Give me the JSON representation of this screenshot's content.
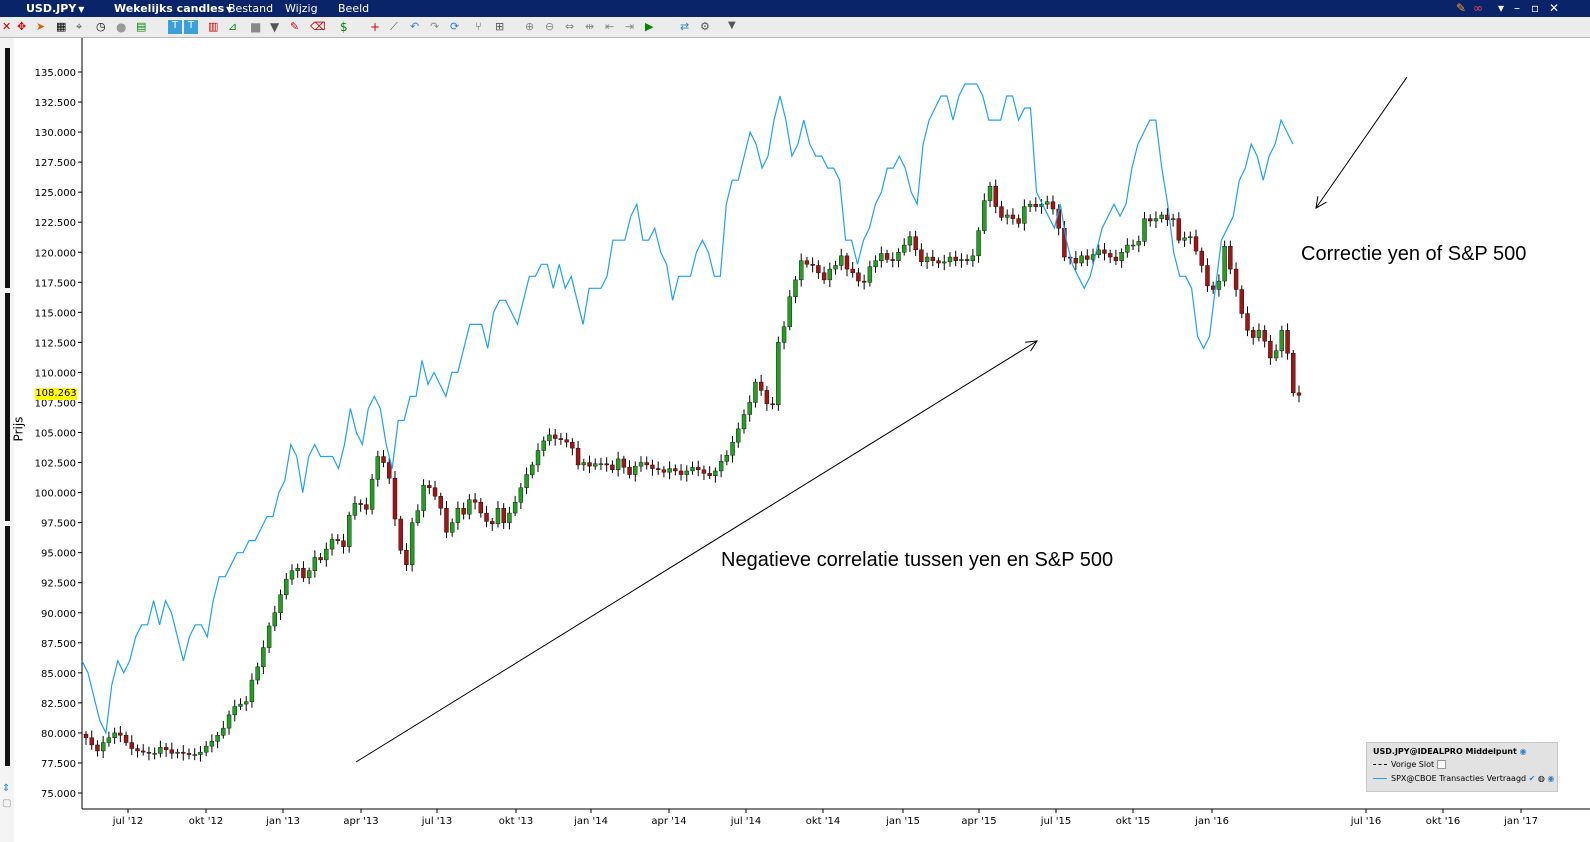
{
  "app": {
    "symbol": "USD.JPY",
    "period": "Wekelijks candles",
    "menu": [
      "Bestand",
      "Wijzig",
      "Beeld"
    ]
  },
  "chart_data": {
    "type": "candlestick",
    "ylabel": "Prijs",
    "ylim": [
      74.5,
      136.2
    ],
    "yticks": [
      "135.000",
      "132.500",
      "130.000",
      "127.500",
      "125.000",
      "122.500",
      "120.000",
      "117.500",
      "115.000",
      "112.500",
      "110.000",
      "107.500",
      "105.000",
      "102.500",
      "100.000",
      "97.500",
      "95.000",
      "92.500",
      "90.000",
      "87.500",
      "85.000",
      "82.500",
      "80.000",
      "77.500",
      "75.000"
    ],
    "xticks": [
      "jul '12",
      "okt '12",
      "jan '13",
      "apr '13",
      "jul '13",
      "okt '13",
      "jan '14",
      "apr '14",
      "jul '14",
      "okt '14",
      "jan '15",
      "apr '15",
      "jul '15",
      "okt '15",
      "jan '16",
      "jul '16",
      "okt '16",
      "jan '17"
    ],
    "current_price": "108.263",
    "usdjpy_weekly_close": [
      79.6,
      79.0,
      78.5,
      79.2,
      79.6,
      80.0,
      79.8,
      79.2,
      78.7,
      78.5,
      78.4,
      78.3,
      78.3,
      78.8,
      78.6,
      78.3,
      78.4,
      78.3,
      78.2,
      78.2,
      78.4,
      78.9,
      79.3,
      79.8,
      80.4,
      81.5,
      82.2,
      82.4,
      82.6,
      84.4,
      85.5,
      87.1,
      88.9,
      90.0,
      91.5,
      92.8,
      93.5,
      93.7,
      92.9,
      93.5,
      94.6,
      94.4,
      95.3,
      96.1,
      96.0,
      95.5,
      98.1,
      99.1,
      99.0,
      98.6,
      101.1,
      103.0,
      102.5,
      101.2,
      97.8,
      95.2,
      94.0,
      97.5,
      98.5,
      100.6,
      100.4,
      99.7,
      98.7,
      96.7,
      97.5,
      98.7,
      98.2,
      99.4,
      99.2,
      98.3,
      97.6,
      97.4,
      98.7,
      97.5,
      98.3,
      99.2,
      100.4,
      101.5,
      102.3,
      103.5,
      104.3,
      104.8,
      104.5,
      104.4,
      104.2,
      103.7,
      102.3,
      102.5,
      102.2,
      102.4,
      102.4,
      102.3,
      101.9,
      102.8,
      102.1,
      101.5,
      102.2,
      102.5,
      102.3,
      102.0,
      101.9,
      101.7,
      102.0,
      101.8,
      101.5,
      101.8,
      102.1,
      101.9,
      101.6,
      101.4,
      101.8,
      102.6,
      103.1,
      104.2,
      105.3,
      106.5,
      107.5,
      109.2,
      108.5,
      107.4,
      107.3,
      112.5,
      113.8,
      116.3,
      117.7,
      119.3,
      119.0,
      118.9,
      118.3,
      117.7,
      118.6,
      118.9,
      119.7,
      118.6,
      118.3,
      117.6,
      117.5,
      118.8,
      119.3,
      119.9,
      119.4,
      119.3,
      120.0,
      120.6,
      121.3,
      120.2,
      119.2,
      119.6,
      119.3,
      119.1,
      119.2,
      119.6,
      119.3,
      119.4,
      119.3,
      119.7,
      121.8,
      124.3,
      125.5,
      123.8,
      122.9,
      123.1,
      122.8,
      122.4,
      123.8,
      124.0,
      123.8,
      124.0,
      124.2,
      123.6,
      122.0,
      119.6,
      119.5,
      119.1,
      119.7,
      119.4,
      119.8,
      120.2,
      119.9,
      119.6,
      119.3,
      120.0,
      120.6,
      120.6,
      120.9,
      122.8,
      122.6,
      122.8,
      123.1,
      122.7,
      122.8,
      121.0,
      121.2,
      121.3,
      120.1,
      118.9,
      117.2,
      116.9,
      117.6,
      120.5,
      118.6,
      116.9,
      114.9,
      113.5,
      112.9,
      113.5,
      112.6,
      111.2,
      111.8,
      113.5,
      111.6,
      108.3,
      108.1
    ],
    "spx_line": [
      86,
      85,
      83,
      81,
      80,
      84,
      86,
      85,
      86,
      88,
      89,
      89,
      91,
      89,
      91,
      90,
      88,
      86,
      88,
      89,
      89,
      88,
      91,
      93,
      93,
      94,
      95,
      95,
      96,
      96,
      97,
      98,
      98,
      100,
      101,
      104,
      103,
      100,
      103,
      104,
      103,
      103,
      103,
      102,
      104,
      107,
      105,
      104,
      107,
      108,
      107,
      104,
      102,
      106,
      106,
      108,
      108,
      111,
      109,
      110,
      109,
      108,
      110,
      110,
      112,
      114,
      114,
      114,
      112,
      115,
      116,
      116,
      115,
      114,
      116,
      118,
      118,
      119,
      119,
      117,
      119,
      117,
      118,
      116,
      114,
      117,
      117,
      117,
      118,
      121,
      121,
      121,
      123,
      124,
      121,
      121,
      122,
      120,
      119,
      116,
      118,
      118,
      118,
      120,
      121,
      120,
      118,
      118,
      124,
      126,
      126,
      128,
      130,
      129,
      127,
      128,
      131,
      133,
      131,
      128,
      129,
      131,
      129,
      128,
      128,
      127,
      127,
      126,
      121,
      121,
      119,
      121,
      122,
      124,
      125,
      127,
      127,
      128,
      127,
      125,
      124,
      129,
      131,
      132,
      133,
      133,
      131,
      133,
      134,
      134,
      134,
      133,
      131,
      131,
      131,
      133,
      133,
      131,
      132,
      132,
      125,
      124,
      123,
      122,
      124,
      121,
      119,
      118,
      117,
      118,
      120,
      122,
      123,
      124,
      123,
      124,
      127,
      129,
      130,
      131,
      131,
      127,
      124,
      120,
      118,
      118,
      117,
      113,
      112,
      113,
      117,
      121,
      122,
      123,
      126,
      127,
      129,
      128,
      126,
      128,
      129,
      131,
      130,
      129
    ],
    "annotations": [
      "Negatieve correlatie tussen yen en S&P 500",
      "Correctie yen of S&P 500"
    ]
  },
  "legend": {
    "title": "USD.JPY@IDEALPRO Middelpunt",
    "items": [
      "Vorige Slot",
      "SPX@CBOE Transacties Vertraagd"
    ]
  },
  "colors": {
    "bull": "#22a022",
    "bear": "#a41414",
    "line": "#1fa2ef",
    "titlebar": "#0a246a",
    "current_price_bg": "#ffff00"
  }
}
